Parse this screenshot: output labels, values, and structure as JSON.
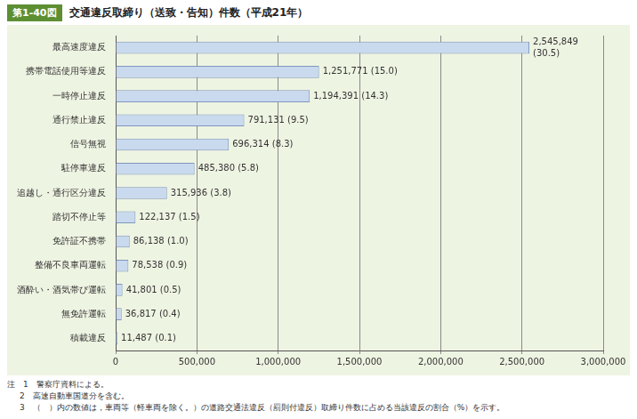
{
  "chart_data": {
    "type": "bar",
    "orientation": "horizontal",
    "figure_number": "第1-40図",
    "title": "交通違反取締り（送致・告知）件数（平成21年）",
    "categories": [
      "最高速度違反",
      "携帯電話使用等違反",
      "一時停止違反",
      "通行禁止違反",
      "信号無視",
      "駐停車違反",
      "追越し・通行区分違反",
      "踏切不停止等",
      "免許証不携帯",
      "整備不良車両運転",
      "酒酔い・酒気帯び運転",
      "無免許運転",
      "積載違反"
    ],
    "values": [
      2545849,
      1251771,
      1194391,
      791131,
      696314,
      485380,
      315936,
      122137,
      86138,
      78538,
      41801,
      36817,
      11487
    ],
    "value_labels": [
      "2,545,849 (30.5)",
      "1,251,771 (15.0)",
      "1,194,391 (14.3)",
      "791,131 (9.5)",
      "696,314 (8.3)",
      "485,380 (5.8)",
      "315,936 (3.8)",
      "122,137 (1.5)",
      "86,138 (1.0)",
      "78,538 (0.9)",
      "41,801 (0.5)",
      "36,817 (0.4)",
      "11,487 (0.1)"
    ],
    "color": "#c9d9ee",
    "data_labels": true,
    "xlim": [
      0,
      3000000
    ],
    "xticks": [
      0,
      {
        "value": 500000,
        "label": "500,000"
      },
      {
        "value": 1000000,
        "label": "1,000,000"
      },
      {
        "value": 1500000,
        "label": "1,500,000"
      },
      {
        "value": 2000000,
        "label": "2,000,000"
      },
      {
        "value": 2500000,
        "label": "2,500,000"
      },
      {
        "value": 3000000,
        "label": "3,000,000"
      }
    ],
    "grid": true,
    "notes": [
      "注　1　警察庁資料による。",
      "2　高速自動車国道分を含む。",
      "3　（　）内の数値は，車両等（軽車両を除く。）の道路交通法違反（罰則付違反）取締り件数に占める当該違反の割合（%）を示す。"
    ]
  }
}
